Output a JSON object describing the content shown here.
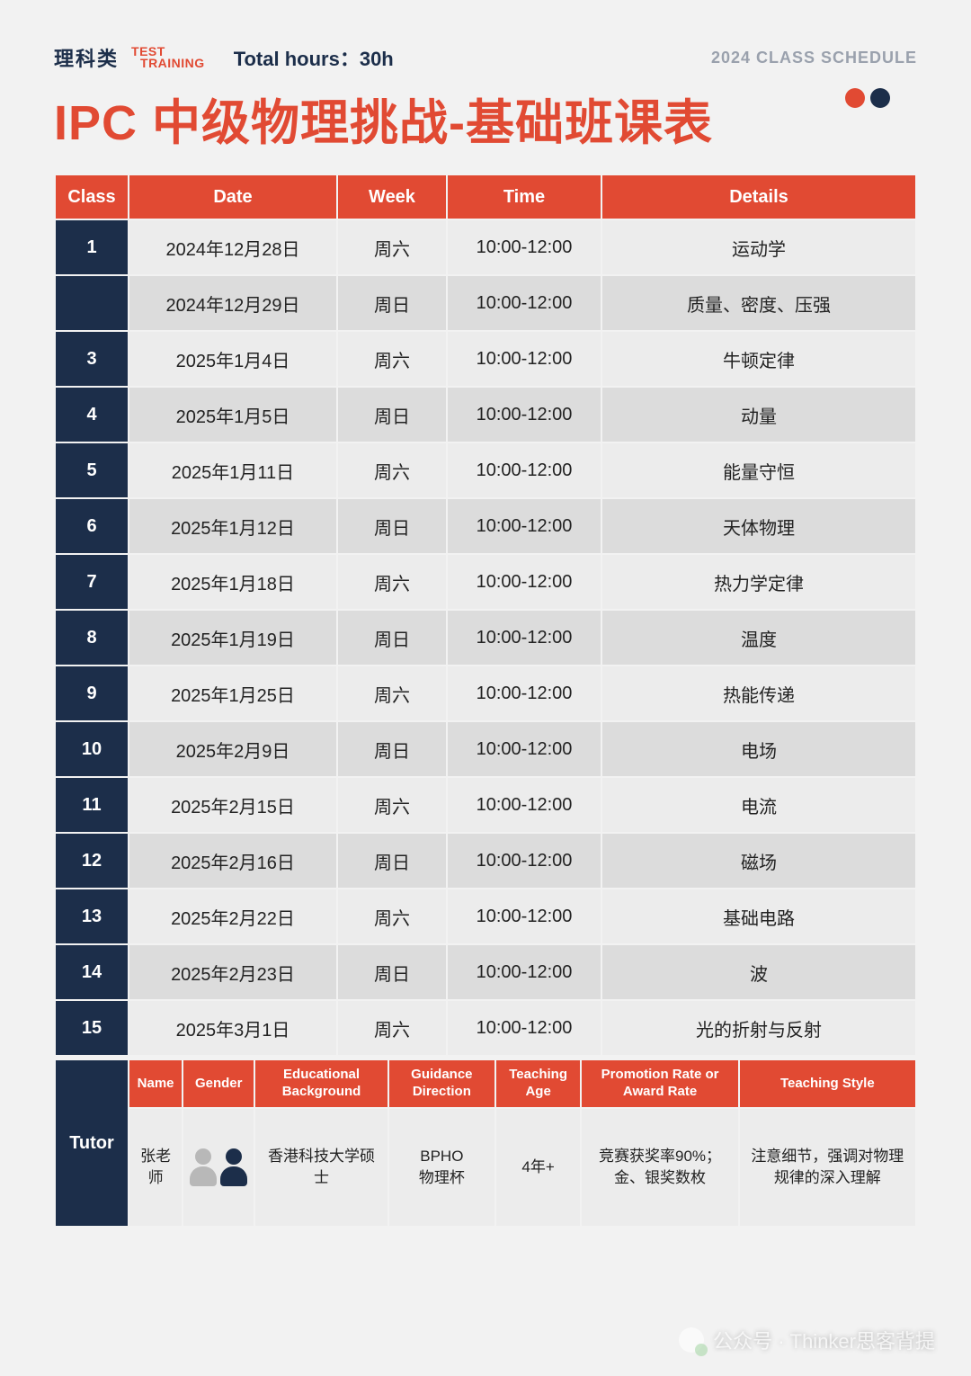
{
  "meta": {
    "category": "理科类",
    "badge_line1": "TEST",
    "badge_line2": "TRAINING",
    "total_hours_label": "Total hours：30h",
    "year_label": "2024 CLASS SCHEDULE",
    "title": "IPC 中级物理挑战-基础班课表"
  },
  "colors": {
    "accent": "#e14a33",
    "navy": "#1c2e4a",
    "page_bg": "#f2f2f2",
    "row_a": "#ececec",
    "row_b": "#dcdcdc",
    "muted_text": "#9aa1ad"
  },
  "schedule": {
    "columns": [
      "Class",
      "Date",
      "Week",
      "Time",
      "Details"
    ],
    "rows": [
      {
        "class": "1",
        "date": "2024年12月28日",
        "week": "周六",
        "time": "10:00-12:00",
        "details": "运动学"
      },
      {
        "class": "",
        "date": "2024年12月29日",
        "week": "周日",
        "time": "10:00-12:00",
        "details": "质量、密度、压强"
      },
      {
        "class": "3",
        "date": "2025年1月4日",
        "week": "周六",
        "time": "10:00-12:00",
        "details": "牛顿定律"
      },
      {
        "class": "4",
        "date": "2025年1月5日",
        "week": "周日",
        "time": "10:00-12:00",
        "details": "动量"
      },
      {
        "class": "5",
        "date": "2025年1月11日",
        "week": "周六",
        "time": "10:00-12:00",
        "details": "能量守恒"
      },
      {
        "class": "6",
        "date": "2025年1月12日",
        "week": "周日",
        "time": "10:00-12:00",
        "details": "天体物理"
      },
      {
        "class": "7",
        "date": "2025年1月18日",
        "week": "周六",
        "time": "10:00-12:00",
        "details": "热力学定律"
      },
      {
        "class": "8",
        "date": "2025年1月19日",
        "week": "周日",
        "time": "10:00-12:00",
        "details": "温度"
      },
      {
        "class": "9",
        "date": "2025年1月25日",
        "week": "周六",
        "time": "10:00-12:00",
        "details": "热能传递"
      },
      {
        "class": "10",
        "date": "2025年2月9日",
        "week": "周日",
        "time": "10:00-12:00",
        "details": "电场"
      },
      {
        "class": "11",
        "date": "2025年2月15日",
        "week": "周六",
        "time": "10:00-12:00",
        "details": "电流"
      },
      {
        "class": "12",
        "date": "2025年2月16日",
        "week": "周日",
        "time": "10:00-12:00",
        "details": "磁场"
      },
      {
        "class": "13",
        "date": "2025年2月22日",
        "week": "周六",
        "time": "10:00-12:00",
        "details": "基础电路"
      },
      {
        "class": "14",
        "date": "2025年2月23日",
        "week": "周日",
        "time": "10:00-12:00",
        "details": "波"
      },
      {
        "class": "15",
        "date": "2025年3月1日",
        "week": "周六",
        "time": "10:00-12:00",
        "details": "光的折射与反射"
      }
    ]
  },
  "tutor": {
    "side_label": "Tutor",
    "columns": [
      "Name",
      "Gender",
      "Educational Background",
      "Guidance Direction",
      "Teaching Age",
      "Promotion Rate or Award Rate",
      "Teaching Style"
    ],
    "name": "张老师",
    "edu": "香港科技大学硕士",
    "direction": "BPHO\n物理杯",
    "age": "4年+",
    "rate": "竞赛获奖率90%；金、银奖数枚",
    "style": "注意细节，强调对物理规律的深入理解"
  },
  "watermark": "公众号 · Thinker思客背提"
}
